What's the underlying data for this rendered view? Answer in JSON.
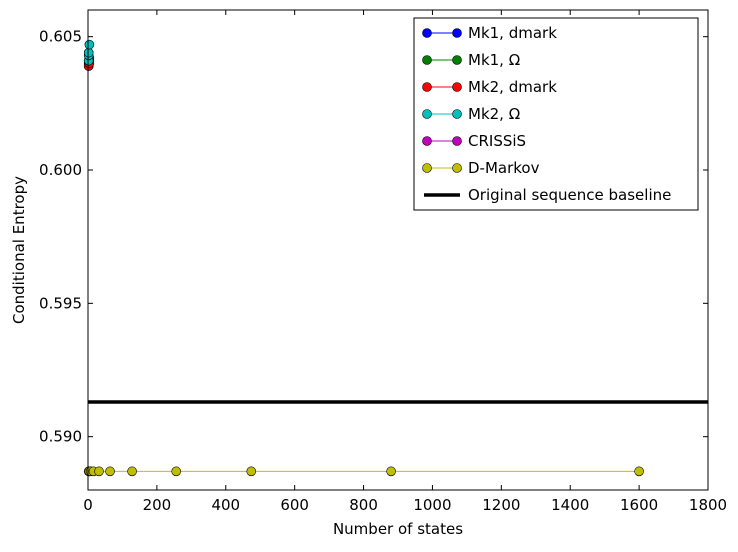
{
  "chart_data": {
    "type": "line",
    "title": "",
    "xlabel": "Number of states",
    "ylabel": "Conditional Entropy",
    "xlim": [
      0,
      1800
    ],
    "ylim": [
      0.588,
      0.606
    ],
    "x_ticks": [
      0,
      200,
      400,
      600,
      800,
      1000,
      1200,
      1400,
      1600,
      1800
    ],
    "x_tick_labels": [
      "0",
      "200",
      "400",
      "600",
      "800",
      "1000",
      "1200",
      "1400",
      "1600",
      "1800"
    ],
    "y_ticks": [
      0.59,
      0.595,
      0.6,
      0.605
    ],
    "y_tick_labels": [
      "0.590",
      "0.595",
      "0.600",
      "0.605"
    ],
    "grid": false,
    "legend_position": "top-right",
    "series": [
      {
        "name": "Mk1, dmark",
        "color": "#0000ff",
        "x": [
          2,
          4
        ],
        "y": [
          0.6039,
          0.6041
        ]
      },
      {
        "name": "Mk1, Ω",
        "color": "#008000",
        "x": [
          2,
          4
        ],
        "y": [
          0.604,
          0.6042
        ]
      },
      {
        "name": "Mk2, dmark",
        "color": "#ff0000",
        "x": [
          2,
          4
        ],
        "y": [
          0.6039,
          0.604
        ]
      },
      {
        "name": "Mk2, Ω",
        "color": "#00bfbf",
        "x": [
          2,
          2,
          2,
          4
        ],
        "y": [
          0.6041,
          0.6043,
          0.6044,
          0.6047
        ]
      },
      {
        "name": "CRISSiS",
        "color": "#bf00bf",
        "x": [],
        "y": []
      },
      {
        "name": "D-Markov",
        "color": "#bfbf00",
        "x": [
          2,
          4,
          8,
          16,
          32,
          64,
          128,
          256,
          474,
          880,
          1600
        ],
        "y": [
          0.5887,
          0.5887,
          0.5887,
          0.5887,
          0.5887,
          0.5887,
          0.5887,
          0.5887,
          0.5887,
          0.5887,
          0.5887
        ]
      }
    ],
    "baseline": {
      "name": "Original sequence baseline",
      "color": "#000000",
      "y": 0.5913
    }
  }
}
